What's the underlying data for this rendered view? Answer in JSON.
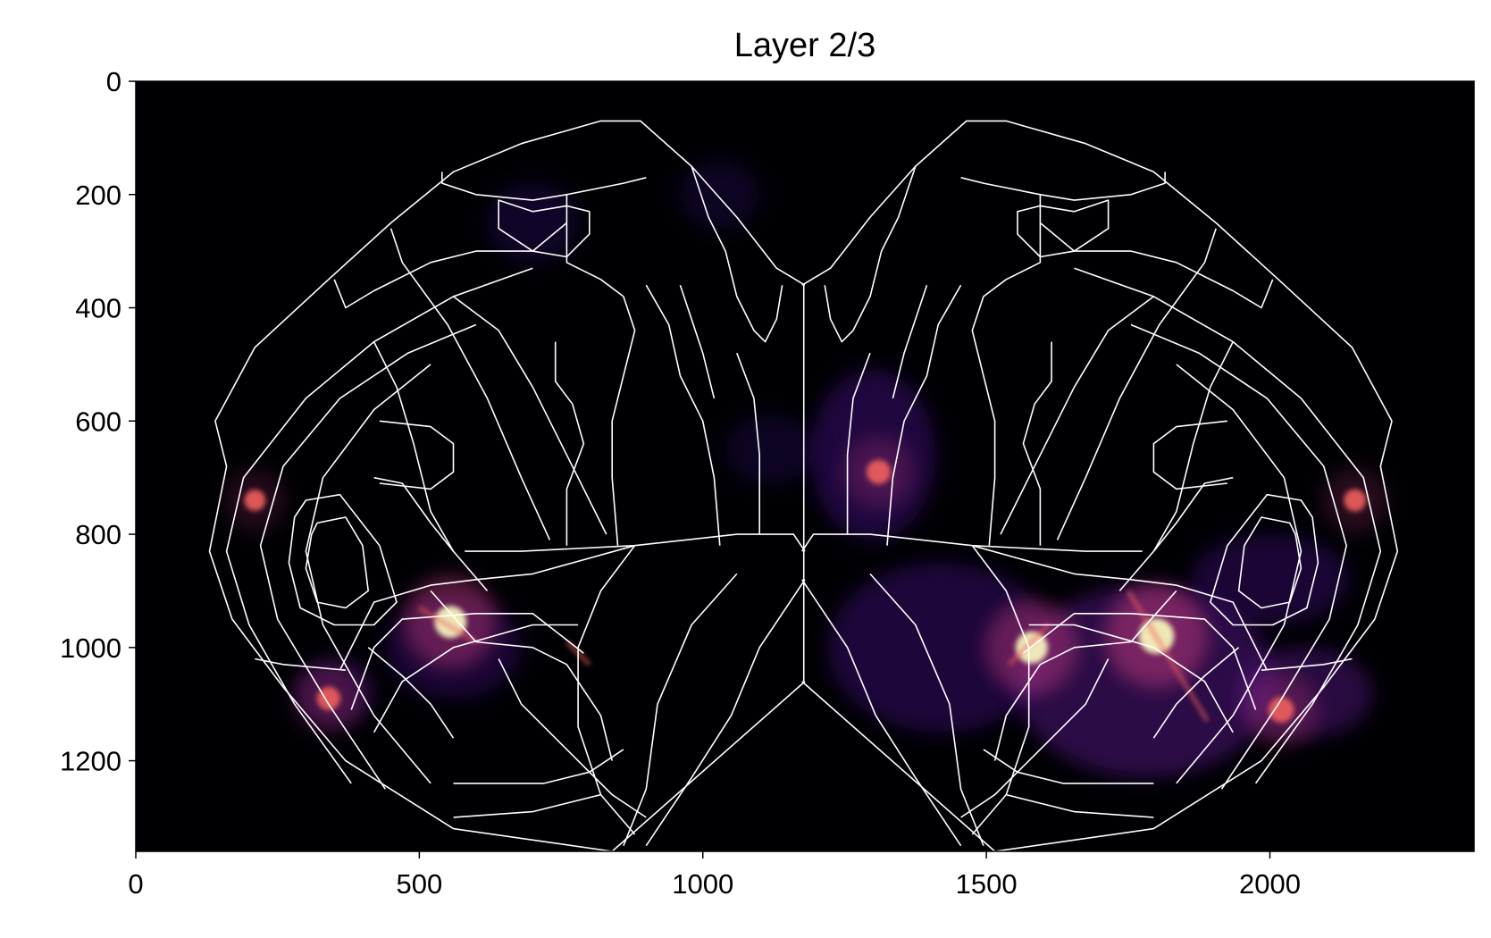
{
  "chart_data": {
    "type": "heatmap",
    "title": "Layer 2/3",
    "xlabel": "",
    "ylabel": "",
    "xlim": [
      0,
      2360
    ],
    "ylim": [
      1360,
      0
    ],
    "x_ticks": [
      "0",
      "500",
      "1000",
      "1500",
      "2000"
    ],
    "x_tick_values": [
      0,
      500,
      1000,
      1500,
      2000
    ],
    "y_ticks": [
      "0",
      "200",
      "400",
      "600",
      "800",
      "1000",
      "1200"
    ],
    "y_tick_values": [
      0,
      200,
      400,
      600,
      800,
      1000,
      1200
    ],
    "colormap": "magma",
    "colors": {
      "background": "#000004",
      "outline": "#ffffff",
      "low": "#3b0f70",
      "mid": "#b73779",
      "high": "#fcfdbf"
    },
    "grid": false,
    "hotspots": [
      {
        "x": 1800,
        "y": 980,
        "intensity": 1.0
      },
      {
        "x": 1580,
        "y": 1000,
        "intensity": 0.85
      },
      {
        "x": 555,
        "y": 955,
        "intensity": 0.85
      },
      {
        "x": 1310,
        "y": 690,
        "intensity": 0.5
      },
      {
        "x": 2020,
        "y": 1110,
        "intensity": 0.55
      },
      {
        "x": 2150,
        "y": 740,
        "intensity": 0.4
      },
      {
        "x": 210,
        "y": 740,
        "intensity": 0.35
      },
      {
        "x": 340,
        "y": 1090,
        "intensity": 0.45
      }
    ]
  }
}
